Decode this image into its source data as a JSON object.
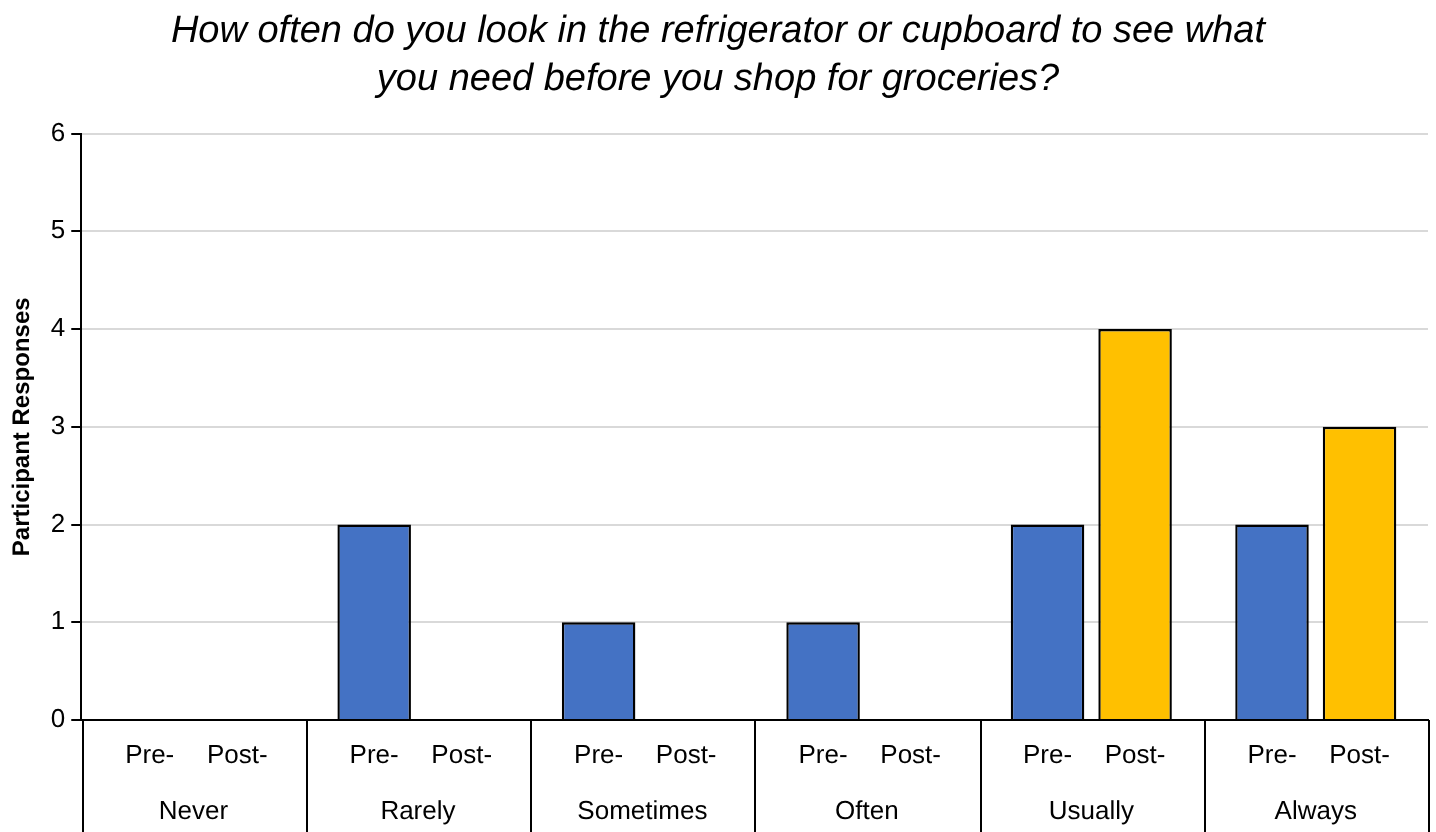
{
  "chart_data": {
    "type": "bar",
    "title": "How often do you look in the refrigerator or cupboard to see what you need before you shop for groceries?",
    "ylabel": "Participant Responses",
    "categories": [
      "Never",
      "Rarely",
      "Sometimes",
      "Often",
      "Usually",
      "Always"
    ],
    "series": [
      {
        "name": "Pre-",
        "color": "#4472c4",
        "values": [
          0,
          2,
          1,
          1,
          2,
          2
        ]
      },
      {
        "name": "Post-",
        "color": "#ffc000",
        "values": [
          0,
          0,
          0,
          0,
          4,
          3
        ]
      }
    ],
    "ylim": [
      0,
      6
    ],
    "yticks": [
      0,
      1,
      2,
      3,
      4,
      5,
      6
    ],
    "grid": "y",
    "legend": false
  }
}
